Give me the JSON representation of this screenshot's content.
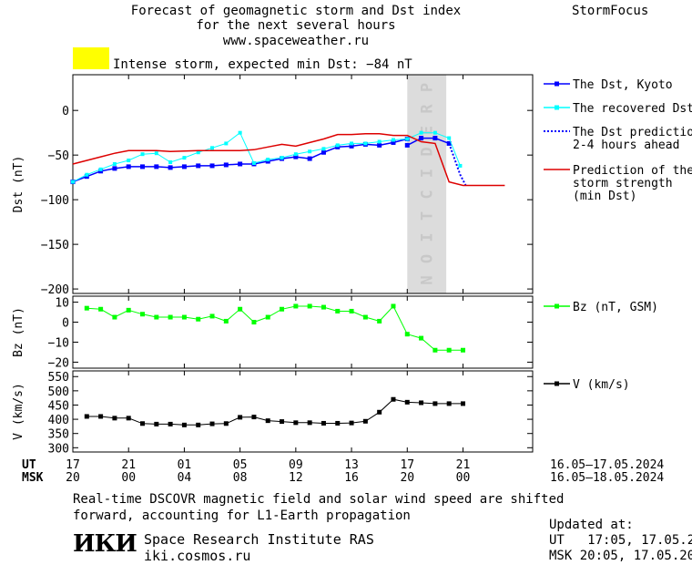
{
  "header": {
    "title_line1": "Forecast of geomagnetic storm and Dst index",
    "title_line2": "for the next several hours",
    "title_line3": "www.spaceweather.ru",
    "brand": "StormFocus"
  },
  "alert": {
    "text": "Intense storm, expected min Dst: −84 nT",
    "color": "#ffff00"
  },
  "colors": {
    "dst_kyoto": "#0000ff",
    "recovered": "#00ffff",
    "dst_prediction": "#0000ff",
    "storm_strength": "#dd0000",
    "bz": "#00ff00",
    "velocity": "#000000",
    "prediction_zone": "#dcdcdc",
    "prediction_text": "#c8c8c8"
  },
  "chart_data": [
    {
      "type": "line",
      "ylabel": "Dst (nT)",
      "ylim": [
        -205,
        40
      ],
      "yticks": [
        0,
        -50,
        -100,
        -150,
        -200
      ],
      "prediction_label": "PREDICTION",
      "legend": [
        {
          "key": "kyoto",
          "label": "The Dst, Kyoto"
        },
        {
          "key": "recovered",
          "label": "The recovered Dst"
        },
        {
          "key": "prediction",
          "label": "The Dst prediction\n2-4 hours ahead"
        },
        {
          "key": "strength",
          "label": "Prediction of the\nstorm strength\n(min Dst)"
        }
      ],
      "series": [
        {
          "key": "kyoto",
          "name": "The Dst, Kyoto",
          "x": [
            17,
            18,
            19,
            20,
            21,
            22,
            23,
            24,
            25,
            26,
            27,
            28,
            29,
            30,
            31,
            32,
            33,
            34,
            35,
            36,
            37,
            38,
            39,
            40,
            41
          ],
          "y": [
            -80,
            -74,
            -68,
            -65,
            -63,
            -63,
            -63,
            -64,
            -63,
            -62,
            -62,
            -61,
            -60,
            -60,
            -57,
            -54,
            -52,
            -54,
            -47,
            -41,
            -40,
            -38,
            -39,
            -36,
            -32
          ]
        },
        {
          "key": "kyoto_b",
          "name": "",
          "x": [
            41,
            42,
            43,
            44
          ],
          "y": [
            -39,
            -31,
            -31,
            -37
          ]
        },
        {
          "key": "recovered",
          "name": "The recovered Dst",
          "x": [
            17,
            18,
            19,
            20,
            21,
            22,
            23,
            24,
            25,
            26,
            27,
            28,
            29,
            30,
            31,
            32,
            33,
            34,
            35,
            36,
            37,
            38,
            39,
            40,
            41,
            42,
            43,
            44,
            44.8
          ],
          "y": [
            -80,
            -72,
            -66,
            -60,
            -56,
            -49,
            -48,
            -58,
            -53,
            -47,
            -42,
            -37,
            -25,
            -59,
            -55,
            -53,
            -49,
            -46,
            -43,
            -39,
            -37,
            -37,
            -35,
            -33,
            -32,
            -25,
            -25,
            -31,
            -62
          ]
        },
        {
          "key": "prediction",
          "name": "The Dst prediction",
          "x": [
            44,
            44.8,
            45.2
          ],
          "y": [
            -37,
            -72,
            -84
          ]
        },
        {
          "key": "strength",
          "name": "Prediction of the storm strength",
          "x": [
            17,
            19,
            20,
            21,
            23,
            24,
            26,
            27,
            28,
            29,
            30,
            31,
            32,
            33,
            34,
            35,
            36,
            37,
            38,
            39,
            40,
            41,
            42,
            43,
            44,
            45,
            46,
            47,
            48
          ],
          "y": [
            -60,
            -52,
            -48,
            -45,
            -45,
            -46,
            -45,
            -45,
            -45,
            -45,
            -44,
            -41,
            -38,
            -40,
            -36,
            -32,
            -27,
            -27,
            -26,
            -26,
            -28,
            -28,
            -35,
            -37,
            -80,
            -84,
            -84,
            -84,
            -84
          ]
        }
      ]
    },
    {
      "type": "line",
      "ylabel": "Bz (nT)",
      "ylim": [
        -23,
        13
      ],
      "yticks": [
        10,
        0,
        -10,
        -20
      ],
      "legend": [
        {
          "key": "bz",
          "label": "Bz (nT, GSM)"
        }
      ],
      "series": [
        {
          "key": "bz",
          "name": "Bz (nT, GSM)",
          "x": [
            18,
            19,
            20,
            21,
            22,
            23,
            24,
            25,
            26,
            27,
            28,
            29,
            30,
            31,
            32,
            33,
            34,
            35,
            36,
            37,
            38,
            39,
            40,
            41,
            42,
            43,
            44,
            45
          ],
          "y": [
            7,
            6.5,
            2.5,
            6,
            4,
            2.5,
            2.5,
            2.5,
            1.5,
            3,
            0.5,
            6.5,
            0,
            2.5,
            6.5,
            8,
            8,
            7.5,
            5.5,
            5.5,
            2.5,
            0.5,
            8,
            -6,
            -8,
            -14,
            -14,
            -14
          ]
        }
      ]
    },
    {
      "type": "line",
      "ylabel": "V (km/s)",
      "ylim": [
        285,
        570
      ],
      "yticks": [
        550,
        500,
        450,
        400,
        350,
        300
      ],
      "ytick_labels": [
        "550",
        "500",
        "450",
        "400",
        "350",
        "300"
      ],
      "legend": [
        {
          "key": "velocity",
          "label": "V (km/s)"
        }
      ],
      "series": [
        {
          "key": "velocity",
          "name": "V (km/s)",
          "x": [
            18,
            19,
            20,
            21,
            22,
            23,
            24,
            25,
            26,
            27,
            28,
            29,
            30,
            31,
            32,
            33,
            34,
            35,
            36,
            37,
            38,
            39,
            40,
            41,
            42,
            43,
            44,
            45
          ],
          "y": [
            410,
            410,
            404,
            404,
            385,
            383,
            383,
            380,
            380,
            384,
            385,
            407,
            408,
            395,
            392,
            388,
            388,
            386,
            386,
            387,
            393,
            425,
            470,
            460,
            458,
            455,
            455,
            455
          ]
        }
      ]
    }
  ],
  "time_axis": {
    "x_range": [
      17,
      50
    ],
    "ut_label": "UT",
    "msk_label": "MSK",
    "ticks": [
      {
        "x": 17,
        "ut": "17",
        "msk": "20"
      },
      {
        "x": 21,
        "ut": "21",
        "msk": "00"
      },
      {
        "x": 25,
        "ut": "01",
        "msk": "04"
      },
      {
        "x": 29,
        "ut": "05",
        "msk": "08"
      },
      {
        "x": 33,
        "ut": "09",
        "msk": "12"
      },
      {
        "x": 37,
        "ut": "13",
        "msk": "16"
      },
      {
        "x": 41,
        "ut": "17",
        "msk": "20"
      },
      {
        "x": 45,
        "ut": "21",
        "msk": "00"
      }
    ],
    "ut_dates": "16.05–17.05.2024",
    "msk_dates": "16.05–18.05.2024",
    "prediction_start": 41,
    "prediction_end": 43.8
  },
  "footer": {
    "note_line1": "Real-time DSCOVR magnetic field and solar wind speed are shifted",
    "note_line2": "forward, accounting for L1-Earth propagation",
    "logo_text": "ИКИ",
    "institute": "Space Research Institute RAS",
    "website": "iki.cosmos.ru",
    "updated_label": "Updated at:",
    "updated_ut": "UT   17:05, 17.05.2024",
    "updated_msk": "MSK 20:05, 17.05.2024"
  }
}
